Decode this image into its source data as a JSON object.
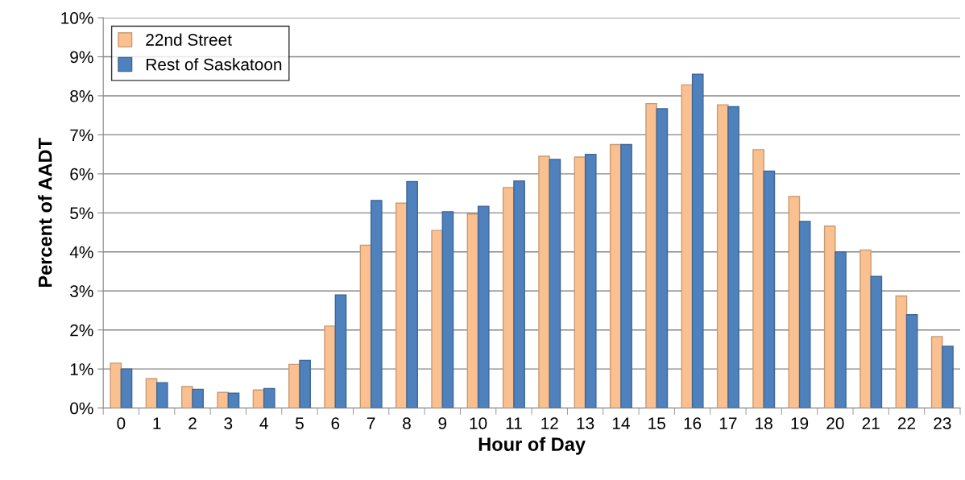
{
  "chart_data": {
    "type": "bar",
    "xlabel": "Hour of Day",
    "ylabel": "Percent of AADT",
    "categories": [
      "0",
      "1",
      "2",
      "3",
      "4",
      "5",
      "6",
      "7",
      "8",
      "9",
      "10",
      "11",
      "12",
      "13",
      "14",
      "15",
      "16",
      "17",
      "18",
      "19",
      "20",
      "21",
      "22",
      "23"
    ],
    "series": [
      {
        "name": "22nd Street",
        "color": "#fac090",
        "values": [
          1.15,
          0.75,
          0.55,
          0.4,
          0.46,
          1.12,
          2.1,
          4.17,
          5.25,
          4.55,
          4.97,
          5.65,
          6.45,
          6.43,
          6.75,
          7.8,
          8.28,
          7.77,
          6.62,
          5.42,
          4.66,
          4.05,
          2.87,
          1.83
        ]
      },
      {
        "name": "Rest of Saskatoon",
        "color": "#4f81bd",
        "values": [
          1.0,
          0.65,
          0.48,
          0.38,
          0.5,
          1.22,
          2.9,
          5.32,
          5.8,
          5.03,
          5.17,
          5.82,
          6.37,
          6.5,
          6.75,
          7.67,
          8.55,
          7.72,
          6.07,
          4.78,
          4.0,
          3.37,
          2.39,
          1.58
        ]
      }
    ],
    "ylim": [
      0,
      10
    ],
    "yticks": [
      {
        "value": 0,
        "label": "0%"
      },
      {
        "value": 1,
        "label": "1%"
      },
      {
        "value": 2,
        "label": "2%"
      },
      {
        "value": 3,
        "label": "3%"
      },
      {
        "value": 4,
        "label": "4%"
      },
      {
        "value": 5,
        "label": "5%"
      },
      {
        "value": 6,
        "label": "6%"
      },
      {
        "value": 7,
        "label": "7%"
      },
      {
        "value": 8,
        "label": "8%"
      },
      {
        "value": 9,
        "label": "9%"
      },
      {
        "value": 10,
        "label": "10%"
      }
    ],
    "grid": "y",
    "legend": "top left"
  }
}
